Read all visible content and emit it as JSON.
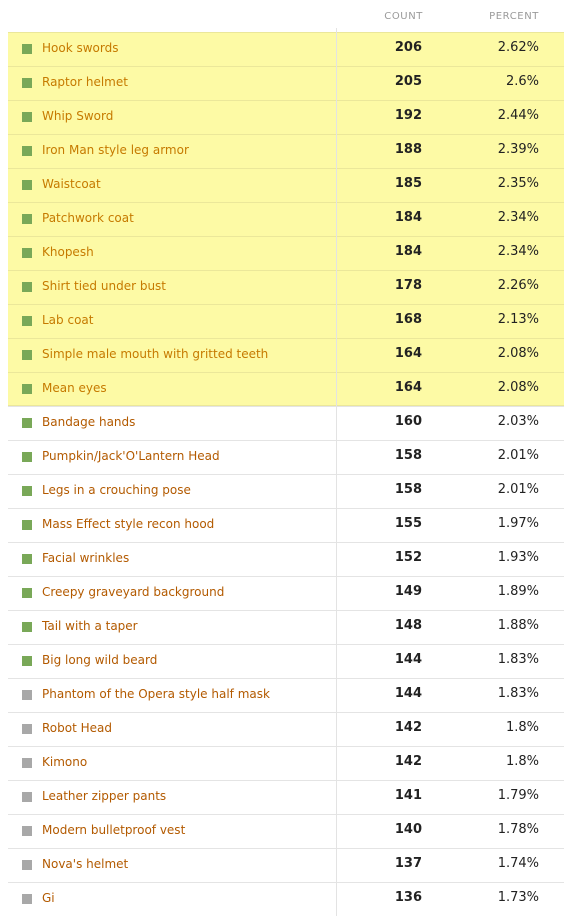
{
  "header": {
    "count": "COUNT",
    "percent": "PERCENT"
  },
  "colors": {
    "green_swatch": "#79a858",
    "gray_swatch": "#a8a8a8",
    "highlight": "#fdfaa5"
  },
  "rows": [
    {
      "label": "Hook swords",
      "count": "206",
      "percent": "2.62%",
      "swatch": "green",
      "highlight": true
    },
    {
      "label": "Raptor helmet",
      "count": "205",
      "percent": "2.6%",
      "swatch": "green",
      "highlight": true
    },
    {
      "label": "Whip Sword",
      "count": "192",
      "percent": "2.44%",
      "swatch": "green",
      "highlight": true
    },
    {
      "label": "Iron Man style leg armor",
      "count": "188",
      "percent": "2.39%",
      "swatch": "green",
      "highlight": true
    },
    {
      "label": "Waistcoat",
      "count": "185",
      "percent": "2.35%",
      "swatch": "green",
      "highlight": true
    },
    {
      "label": "Patchwork coat",
      "count": "184",
      "percent": "2.34%",
      "swatch": "green",
      "highlight": true
    },
    {
      "label": "Khopesh",
      "count": "184",
      "percent": "2.34%",
      "swatch": "green",
      "highlight": true
    },
    {
      "label": "Shirt tied under bust",
      "count": "178",
      "percent": "2.26%",
      "swatch": "green",
      "highlight": true
    },
    {
      "label": "Lab coat",
      "count": "168",
      "percent": "2.13%",
      "swatch": "green",
      "highlight": true
    },
    {
      "label": "Simple male mouth with gritted teeth",
      "count": "164",
      "percent": "2.08%",
      "swatch": "green",
      "highlight": true
    },
    {
      "label": "Mean eyes",
      "count": "164",
      "percent": "2.08%",
      "swatch": "green",
      "highlight": true
    },
    {
      "label": "Bandage hands",
      "count": "160",
      "percent": "2.03%",
      "swatch": "green",
      "highlight": false
    },
    {
      "label": "Pumpkin/Jack'O'Lantern Head",
      "count": "158",
      "percent": "2.01%",
      "swatch": "green",
      "highlight": false
    },
    {
      "label": "Legs in a crouching pose",
      "count": "158",
      "percent": "2.01%",
      "swatch": "green",
      "highlight": false
    },
    {
      "label": "Mass Effect style recon hood",
      "count": "155",
      "percent": "1.97%",
      "swatch": "green",
      "highlight": false
    },
    {
      "label": "Facial wrinkles",
      "count": "152",
      "percent": "1.93%",
      "swatch": "green",
      "highlight": false
    },
    {
      "label": "Creepy graveyard background",
      "count": "149",
      "percent": "1.89%",
      "swatch": "green",
      "highlight": false
    },
    {
      "label": "Tail with a taper",
      "count": "148",
      "percent": "1.88%",
      "swatch": "green",
      "highlight": false
    },
    {
      "label": "Big long wild beard",
      "count": "144",
      "percent": "1.83%",
      "swatch": "green",
      "highlight": false
    },
    {
      "label": "Phantom of the Opera style half mask",
      "count": "144",
      "percent": "1.83%",
      "swatch": "gray",
      "highlight": false
    },
    {
      "label": "Robot Head",
      "count": "142",
      "percent": "1.8%",
      "swatch": "gray",
      "highlight": false
    },
    {
      "label": "Kimono",
      "count": "142",
      "percent": "1.8%",
      "swatch": "gray",
      "highlight": false
    },
    {
      "label": "Leather zipper pants",
      "count": "141",
      "percent": "1.79%",
      "swatch": "gray",
      "highlight": false
    },
    {
      "label": "Modern bulletproof vest",
      "count": "140",
      "percent": "1.78%",
      "swatch": "gray",
      "highlight": false
    },
    {
      "label": "Nova's helmet",
      "count": "137",
      "percent": "1.74%",
      "swatch": "gray",
      "highlight": false
    },
    {
      "label": "Gi",
      "count": "136",
      "percent": "1.73%",
      "swatch": "gray",
      "highlight": false
    }
  ]
}
